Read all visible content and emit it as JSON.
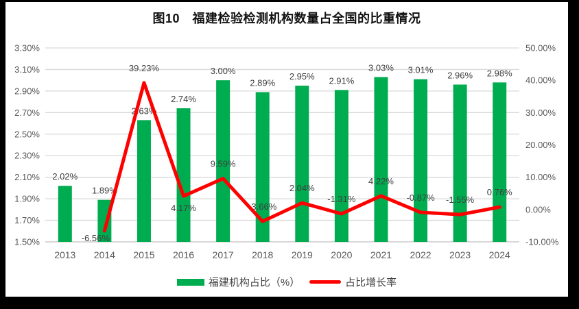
{
  "chart_data": {
    "type": "combo",
    "title": "图10　福建检验检测机构数量占全国的比重情况",
    "categories": [
      "2013",
      "2014",
      "2015",
      "2016",
      "2017",
      "2018",
      "2019",
      "2020",
      "2021",
      "2022",
      "2023",
      "2024"
    ],
    "series": [
      {
        "name": "福建机构占比（%）",
        "type": "bar",
        "axis": "left",
        "color": "#00AC50",
        "values": [
          2.02,
          1.89,
          2.63,
          2.74,
          3.0,
          2.89,
          2.95,
          2.91,
          3.03,
          3.01,
          2.96,
          2.98
        ],
        "labels": [
          "2.02%",
          "1.89%",
          "2.63%",
          "2.74%",
          "3.00%",
          "2.89%",
          "2.95%",
          "2.91%",
          "3.03%",
          "3.01%",
          "2.96%",
          "2.98%"
        ]
      },
      {
        "name": "占比增长率",
        "type": "line",
        "axis": "right",
        "color": "#FF0000",
        "values": [
          null,
          -6.56,
          39.23,
          4.17,
          9.59,
          -3.66,
          2.04,
          -1.31,
          4.22,
          -0.87,
          -1.55,
          0.76
        ],
        "labels": [
          null,
          "-6.56%",
          "39.23%",
          "4.17%",
          "9.59%",
          "-3.66%",
          "2.04%",
          "-1.31%",
          "4.22%",
          "-0.87%",
          "-1.55%",
          "0.76%"
        ],
        "label_pos": [
          null,
          "below-left",
          "above",
          "below",
          "above",
          "above",
          "above",
          "above",
          "above",
          "above",
          "above",
          "above"
        ]
      }
    ],
    "left_axis": {
      "min": 1.5,
      "max": 3.3,
      "step": 0.2,
      "ticks": [
        "3.30%",
        "3.10%",
        "2.90%",
        "2.70%",
        "2.50%",
        "2.30%",
        "2.10%",
        "1.90%",
        "1.70%",
        "1.50%"
      ]
    },
    "right_axis": {
      "min": -10,
      "max": 50,
      "step": 10,
      "ticks": [
        "50.00%",
        "40.00%",
        "30.00%",
        "20.00%",
        "10.00%",
        "0.00%",
        "-10.00%"
      ]
    },
    "grid": "horizontal",
    "legend_position": "bottom",
    "colors": {
      "gridline": "#D9D9D9",
      "axis_line": "#BFBFBF",
      "label_text": "#404040",
      "tick_text": "#595959"
    }
  }
}
